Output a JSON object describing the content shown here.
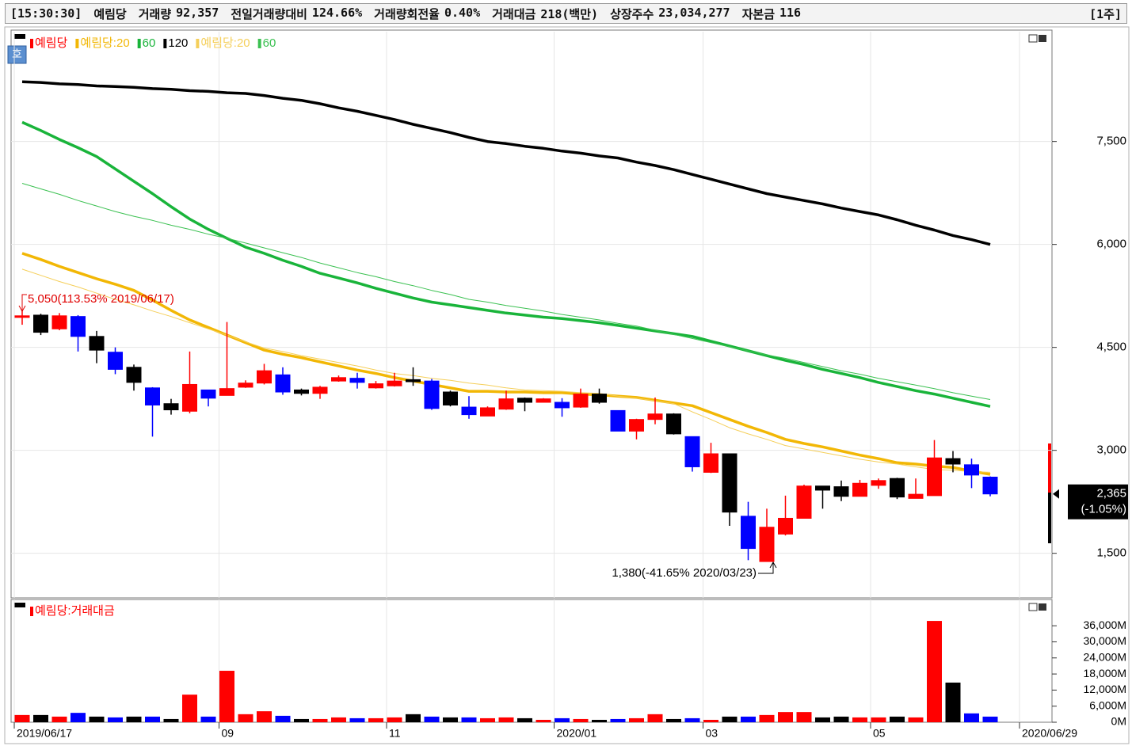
{
  "header": {
    "time": "[15:30:30]",
    "name": "예림당",
    "fields": [
      {
        "label": "거래량",
        "value": "92,357"
      },
      {
        "label": "전일거래량대비",
        "value": "124.66%"
      },
      {
        "label": "거래량회전율",
        "value": "0.40%"
      },
      {
        "label": "거래대금",
        "value": "218(백만)"
      },
      {
        "label": "상장주수",
        "value": "23,034,277"
      },
      {
        "label": "자본금",
        "value": "116"
      }
    ],
    "period": "[1주]"
  },
  "button": "호",
  "chart_data": [
    {
      "type": "candlestick",
      "name": "예림당",
      "legend_color": "#ff0000",
      "grid": true,
      "categories": [
        "2019/06/17",
        null,
        null,
        null,
        null,
        null,
        null,
        null,
        null,
        null,
        null,
        "09",
        null,
        null,
        null,
        null,
        null,
        null,
        null,
        null,
        "11",
        null,
        null,
        null,
        null,
        null,
        null,
        null,
        null,
        "2020/01",
        null,
        null,
        null,
        null,
        null,
        null,
        null,
        "03",
        null,
        null,
        null,
        null,
        null,
        null,
        null,
        null,
        "05",
        null,
        null,
        null,
        null,
        null,
        null,
        null,
        "2020/06/29"
      ],
      "open": [
        4960,
        4970,
        4770,
        4950,
        4660,
        4430,
        4210,
        3910,
        3680,
        3570,
        3880,
        3800,
        3920,
        3980,
        4100,
        3880,
        3830,
        4010,
        4050,
        3910,
        3940,
        4030,
        4010,
        3850,
        3630,
        3500,
        3600,
        3760,
        3700,
        3700,
        3630,
        3820,
        3580,
        3280,
        3450,
        3530,
        3200,
        2680,
        2950,
        2040,
        1380,
        1780,
        2010,
        2480,
        2470,
        2330,
        2490,
        2590,
        2300,
        2340,
        2880,
        2790,
        2610,
        null,
        null
      ],
      "high": [
        5050,
        4990,
        5000,
        4970,
        4740,
        4500,
        4250,
        3920,
        3750,
        4440,
        3880,
        4870,
        4020,
        4260,
        4210,
        3900,
        3940,
        4090,
        4130,
        4010,
        4130,
        4210,
        4040,
        3870,
        3790,
        3640,
        3870,
        3770,
        3760,
        3760,
        3900,
        3900,
        3580,
        3460,
        3770,
        3540,
        3200,
        3110,
        2950,
        2250,
        2150,
        2340,
        2500,
        2480,
        2560,
        2570,
        2590,
        2600,
        2590,
        3150,
        2990,
        2880,
        2620,
        null,
        null
      ],
      "low": [
        4830,
        4680,
        4750,
        4440,
        4270,
        4110,
        3870,
        3200,
        3520,
        3540,
        3640,
        3800,
        3910,
        3960,
        3810,
        3800,
        3750,
        4000,
        3900,
        3900,
        3930,
        3940,
        3590,
        3640,
        3460,
        3500,
        3590,
        3570,
        3700,
        3490,
        3620,
        3680,
        3280,
        3160,
        3380,
        3230,
        2690,
        2670,
        1900,
        1400,
        1380,
        1760,
        2010,
        2150,
        2260,
        2330,
        2440,
        2290,
        2300,
        2340,
        2680,
        2450,
        2330,
        null,
        null
      ],
      "close": [
        4960,
        4720,
        4960,
        4660,
        4460,
        4180,
        3990,
        3660,
        3590,
        3960,
        3760,
        3900,
        3980,
        4160,
        3850,
        3830,
        3920,
        4060,
        3990,
        3970,
        4010,
        4000,
        3610,
        3660,
        3520,
        3620,
        3750,
        3700,
        3750,
        3620,
        3820,
        3700,
        3280,
        3450,
        3530,
        3240,
        2760,
        2950,
        2100,
        1570,
        1880,
        2010,
        2480,
        2420,
        2330,
        2520,
        2560,
        2320,
        2360,
        2890,
        2800,
        2640,
        2365,
        null,
        null
      ],
      "colors": [
        "#ff0000",
        "#000000",
        "#ff0000",
        "#0000ff",
        "#000000",
        "#0000ff",
        "#000000",
        "#0000ff",
        "#000000",
        "#ff0000",
        "#0000ff",
        "#ff0000",
        "#ff0000",
        "#ff0000",
        "#0000ff",
        "#000000",
        "#ff0000",
        "#ff0000",
        "#0000ff",
        "#ff0000",
        "#ff0000",
        "#000000",
        "#0000ff",
        "#000000",
        "#0000ff",
        "#ff0000",
        "#ff0000",
        "#000000",
        "#ff0000",
        "#0000ff",
        "#ff0000",
        "#000000",
        "#0000ff",
        "#ff0000",
        "#ff0000",
        "#000000",
        "#0000ff",
        "#ff0000",
        "#000000",
        "#0000ff",
        "#ff0000",
        "#ff0000",
        "#ff0000",
        "#000000",
        "#000000",
        "#ff0000",
        "#ff0000",
        "#000000",
        "#ff0000",
        "#ff0000",
        "#000000",
        "#0000ff",
        "#0000ff",
        null,
        null
      ],
      "series": [
        {
          "name": "예림당:20",
          "color": "#f2b705",
          "width": 3.5,
          "values": [
            5870,
            5780,
            5680,
            5590,
            5500,
            5420,
            5330,
            5190,
            5040,
            4900,
            4790,
            4680,
            4570,
            4460,
            4400,
            4350,
            4290,
            4230,
            4170,
            4120,
            4060,
            4010,
            3960,
            3910,
            3860,
            3860,
            3850,
            3850,
            3840,
            3840,
            3820,
            3810,
            3790,
            3770,
            3730,
            3690,
            3650,
            3550,
            3450,
            3350,
            3260,
            3160,
            3100,
            3050,
            2990,
            2930,
            2880,
            2820,
            2800,
            2770,
            2750,
            2700,
            2650,
            null,
            null
          ]
        },
        {
          "name": "60",
          "color": "#19b43a",
          "width": 3.5,
          "values": [
            7780,
            7660,
            7530,
            7410,
            7280,
            7100,
            6920,
            6740,
            6550,
            6370,
            6220,
            6090,
            5960,
            5870,
            5770,
            5680,
            5580,
            5510,
            5440,
            5360,
            5290,
            5220,
            5160,
            5120,
            5080,
            5040,
            5000,
            4970,
            4940,
            4920,
            4890,
            4860,
            4820,
            4780,
            4740,
            4700,
            4660,
            4590,
            4520,
            4450,
            4380,
            4310,
            4250,
            4180,
            4120,
            4060,
            3990,
            3930,
            3870,
            3820,
            3760,
            3700,
            3640,
            null,
            null
          ]
        },
        {
          "name": "120",
          "color": "#000000",
          "width": 3.5,
          "values": [
            8370,
            8360,
            8340,
            8330,
            8310,
            8300,
            8290,
            8270,
            8260,
            8240,
            8230,
            8210,
            8200,
            8170,
            8130,
            8100,
            8050,
            7990,
            7940,
            7880,
            7820,
            7750,
            7690,
            7630,
            7560,
            7500,
            7470,
            7430,
            7400,
            7360,
            7330,
            7290,
            7260,
            7200,
            7150,
            7090,
            7020,
            6950,
            6880,
            6810,
            6740,
            6690,
            6640,
            6590,
            6530,
            6480,
            6430,
            6360,
            6280,
            6210,
            6130,
            6070,
            6000,
            null,
            null
          ]
        },
        {
          "name": "예림당:20",
          "color": "#f5cf5a",
          "width": 1,
          "values": [
            5640,
            5550,
            5460,
            5380,
            5290,
            5200,
            5120,
            5030,
            4950,
            4860,
            4770,
            4680,
            4580,
            4490,
            4440,
            4380,
            4330,
            4280,
            4230,
            4170,
            4120,
            4090,
            4050,
            4020,
            3980,
            3950,
            3910,
            3880,
            3870,
            3860,
            3840,
            3830,
            3790,
            3760,
            3720,
            3680,
            3560,
            3450,
            3330,
            3240,
            3160,
            3070,
            3020,
            2970,
            2920,
            2870,
            2830,
            2800,
            2760,
            2720,
            2710,
            2690,
            2680,
            null,
            null
          ]
        },
        {
          "name": "60",
          "color": "#3cc152",
          "width": 1,
          "values": [
            6890,
            6810,
            6730,
            6640,
            6560,
            6480,
            6410,
            6350,
            6280,
            6220,
            6150,
            6090,
            6020,
            5950,
            5880,
            5810,
            5730,
            5660,
            5590,
            5530,
            5460,
            5400,
            5330,
            5270,
            5200,
            5160,
            5110,
            5070,
            5030,
            4980,
            4940,
            4900,
            4850,
            4810,
            4750,
            4690,
            4630,
            4570,
            4510,
            4450,
            4390,
            4340,
            4280,
            4220,
            4160,
            4110,
            4050,
            4000,
            3950,
            3900,
            3840,
            3790,
            3740,
            null,
            null
          ]
        }
      ],
      "ylim": [
        850,
        9100
      ],
      "yticks": [
        {
          "value": 1500,
          "label": "1,500"
        },
        {
          "value": 3000,
          "label": "3,000"
        },
        {
          "value": 4500,
          "label": "4,500"
        },
        {
          "value": 6000,
          "label": "6,000"
        },
        {
          "value": 7500,
          "label": "7,500"
        }
      ],
      "annotations": [
        "5,050(113.53% 2019/06/17)",
        "1,380(-41.65% 2020/03/23)"
      ],
      "price_marker": {
        "value": 2365,
        "label": "2,365",
        "change": "(-1.05%)"
      }
    },
    {
      "type": "bar",
      "grid": false,
      "series": [
        {
          "name": "예림당:거래대금",
          "color": "#ff0000",
          "values": [
            2700,
            2700,
            2100,
            3500,
            2100,
            1800,
            2100,
            2100,
            1200,
            10300,
            2100,
            19200,
            3000,
            4100,
            2400,
            1200,
            1200,
            1800,
            1500,
            1500,
            1800,
            3000,
            2100,
            1800,
            1800,
            1500,
            1800,
            1500,
            900,
            1500,
            1200,
            900,
            1200,
            1500,
            3000,
            1200,
            1500,
            900,
            2100,
            2100,
            2700,
            3800,
            3800,
            1800,
            2100,
            1800,
            1800,
            2100,
            1800,
            37800,
            14800,
            3300,
            2100,
            null,
            null
          ],
          "colors": [
            "#ff0000",
            "#000000",
            "#ff0000",
            "#0000ff",
            "#000000",
            "#0000ff",
            "#000000",
            "#0000ff",
            "#000000",
            "#ff0000",
            "#0000ff",
            "#ff0000",
            "#ff0000",
            "#ff0000",
            "#0000ff",
            "#000000",
            "#ff0000",
            "#ff0000",
            "#0000ff",
            "#ff0000",
            "#ff0000",
            "#000000",
            "#0000ff",
            "#000000",
            "#0000ff",
            "#ff0000",
            "#ff0000",
            "#000000",
            "#ff0000",
            "#0000ff",
            "#ff0000",
            "#000000",
            "#0000ff",
            "#ff0000",
            "#ff0000",
            "#000000",
            "#0000ff",
            "#ff0000",
            "#000000",
            "#0000ff",
            "#ff0000",
            "#ff0000",
            "#ff0000",
            "#000000",
            "#000000",
            "#ff0000",
            "#ff0000",
            "#000000",
            "#ff0000",
            "#ff0000",
            "#000000",
            "#0000ff",
            "#0000ff",
            null,
            null
          ]
        }
      ],
      "ylim": [
        0,
        45800
      ],
      "yticks": [
        {
          "value": 0,
          "label": "0M"
        },
        {
          "value": 6000,
          "label": "6,000M"
        },
        {
          "value": 12000,
          "label": "12,000M"
        },
        {
          "value": 18000,
          "label": "18,000M"
        },
        {
          "value": 24000,
          "label": "24,000M"
        },
        {
          "value": 30000,
          "label": "30,000M"
        },
        {
          "value": 36000,
          "label": "36,000M"
        }
      ]
    }
  ]
}
